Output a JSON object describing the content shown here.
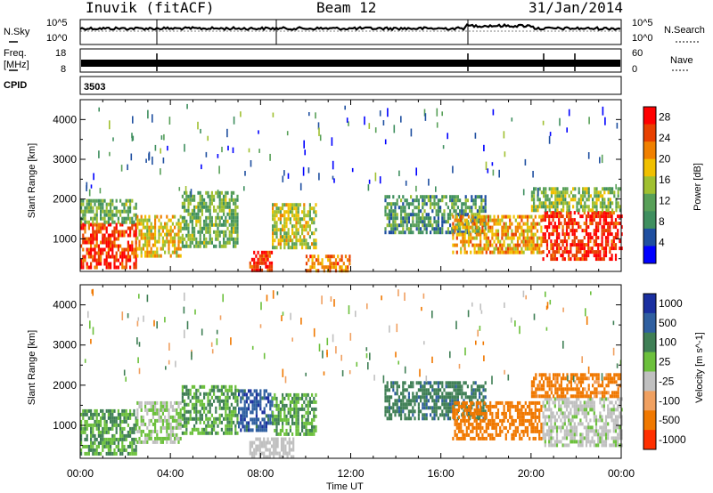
{
  "header": {
    "station": "Inuvik (fitACF)",
    "beam": "Beam 12",
    "date": "31/Jan/2014"
  },
  "strips": {
    "nsky": {
      "label": "N.Sky",
      "left_ticks": [
        "10^5",
        "10^0"
      ],
      "right_label": "N.Search",
      "right_ticks": [
        "10^5",
        "10^0"
      ]
    },
    "freq": {
      "label_lines": [
        "Freq.",
        "[MHz]"
      ],
      "left_ticks": [
        "18",
        "8"
      ],
      "right_label": "Nave",
      "right_ticks": [
        "60",
        "0"
      ]
    },
    "cpid": {
      "label": "CPID",
      "value": "3503"
    }
  },
  "colors": {
    "power_scale": [
      "#0000ff",
      "#1f4fa0",
      "#3f8f5f",
      "#58a058",
      "#a0c030",
      "#f0c000",
      "#f08000",
      "#e84000",
      "#ff0000"
    ],
    "velocity_scale": [
      "#1a2fa0",
      "#2f5fa0",
      "#3f7f55",
      "#6cc03c",
      "#c0c0c0",
      "#f0a060",
      "#f07800",
      "#ff3000"
    ]
  },
  "chart_data": [
    {
      "type": "heatmap",
      "panel": "power",
      "xlabel": "",
      "ylabel": "Slant Range [km]",
      "x_ticks": [
        "00:00",
        "04:00",
        "08:00",
        "12:00",
        "16:00",
        "20:00",
        "00:00"
      ],
      "xlim_hours": [
        0,
        24
      ],
      "ylim": [
        180,
        4500
      ],
      "y_ticks": [
        1000,
        2000,
        3000,
        4000
      ],
      "colorbar": {
        "label": "Power [dB]",
        "ticks": [
          4,
          8,
          12,
          16,
          20,
          24,
          28
        ],
        "range": [
          0,
          30
        ]
      },
      "regions": [
        {
          "t0": 0.0,
          "t1": 2.5,
          "r0": 300,
          "r1": 1400,
          "value": 26
        },
        {
          "t0": 0.0,
          "t1": 2.5,
          "r0": 1400,
          "r1": 2000,
          "value": 12
        },
        {
          "t0": 2.5,
          "t1": 4.5,
          "r0": 600,
          "r1": 1600,
          "value": 18
        },
        {
          "t0": 4.5,
          "t1": 7.0,
          "r0": 800,
          "r1": 2200,
          "value": 12
        },
        {
          "t0": 7.5,
          "t1": 8.5,
          "r0": 200,
          "r1": 700,
          "value": 26
        },
        {
          "t0": 8.5,
          "t1": 10.5,
          "r0": 800,
          "r1": 1900,
          "value": 16
        },
        {
          "t0": 10.0,
          "t1": 12.0,
          "r0": 200,
          "r1": 600,
          "value": 22
        },
        {
          "t0": 13.5,
          "t1": 18.0,
          "r0": 1200,
          "r1": 2100,
          "value": 10
        },
        {
          "t0": 16.5,
          "t1": 20.5,
          "r0": 700,
          "r1": 1600,
          "value": 20
        },
        {
          "t0": 20.5,
          "t1": 24.0,
          "r0": 500,
          "r1": 1700,
          "value": 27
        },
        {
          "t0": 20.0,
          "t1": 24.0,
          "r0": 1700,
          "r1": 2300,
          "value": 14
        }
      ]
    },
    {
      "type": "heatmap",
      "panel": "velocity",
      "xlabel": "Time UT",
      "ylabel": "Slant Range [km]",
      "x_ticks": [
        "00:00",
        "04:00",
        "08:00",
        "12:00",
        "16:00",
        "20:00",
        "00:00"
      ],
      "xlim_hours": [
        0,
        24
      ],
      "ylim": [
        180,
        4500
      ],
      "y_ticks": [
        1000,
        2000,
        3000,
        4000
      ],
      "colorbar": {
        "label": "Velocity [m s^-1]",
        "ticks": [
          "1000",
          "500",
          "100",
          "25",
          "-25",
          "-100",
          "-500",
          "-1000"
        ]
      },
      "regions": [
        {
          "t0": 0.0,
          "t1": 2.5,
          "r0": 300,
          "r1": 1400,
          "value": 100
        },
        {
          "t0": 2.5,
          "t1": 4.5,
          "r0": 600,
          "r1": 1600,
          "value": 25
        },
        {
          "t0": 4.5,
          "t1": 7.0,
          "r0": 800,
          "r1": 2000,
          "value": 100
        },
        {
          "t0": 7.0,
          "t1": 8.5,
          "r0": 900,
          "r1": 1900,
          "value": 800
        },
        {
          "t0": 7.5,
          "t1": 9.5,
          "r0": 200,
          "r1": 700,
          "value": 0
        },
        {
          "t0": 8.5,
          "t1": 10.5,
          "r0": 800,
          "r1": 1800,
          "value": 100
        },
        {
          "t0": 13.5,
          "t1": 18.0,
          "r0": 1200,
          "r1": 2100,
          "value": 400
        },
        {
          "t0": 16.5,
          "t1": 20.5,
          "r0": 700,
          "r1": 1600,
          "value": -300
        },
        {
          "t0": 20.5,
          "t1": 24.0,
          "r0": 500,
          "r1": 1700,
          "value": 10
        },
        {
          "t0": 20.0,
          "t1": 24.0,
          "r0": 1700,
          "r1": 2300,
          "value": -150
        }
      ]
    }
  ]
}
